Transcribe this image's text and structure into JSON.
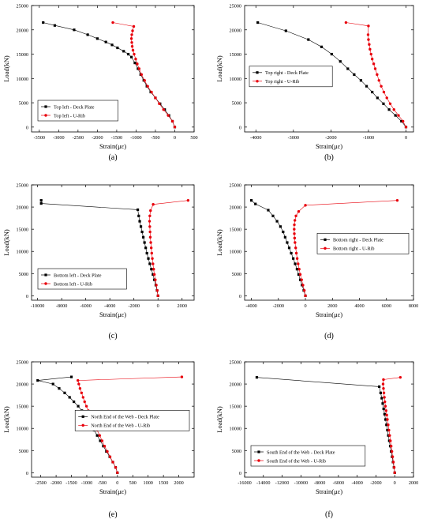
{
  "colors": {
    "deck": "#000000",
    "urib": "#e8000b",
    "axis": "#000000",
    "frame": "#ffffff"
  },
  "charts": [
    {
      "caption": "(a)",
      "chart_data": {
        "type": "line",
        "xlabel": "Strain(με)",
        "ylabel": "Load(kN)",
        "xlim": [
          -3700,
          500
        ],
        "ylim": [
          -1000,
          25000
        ],
        "xticks": [
          -3500,
          -3000,
          -2500,
          -2000,
          -1500,
          -1000,
          -500,
          0,
          500
        ],
        "yticks": [
          0,
          5000,
          10000,
          15000,
          20000,
          25000
        ],
        "legend_position": "lower-left",
        "series": [
          {
            "name": "Top left - Deck Plate",
            "color": "#000000",
            "marker": "square",
            "x": [
              0,
              -60,
              -150,
              -260,
              -380,
              -500,
              -620,
              -720,
              -800,
              -880,
              -950,
              -1030,
              -1120,
              -1200,
              -1320,
              -1480,
              -1620,
              -1780,
              -2000,
              -2250,
              -2600,
              -3100,
              -3400
            ],
            "y": [
              0,
              1200,
              2400,
              3600,
              4800,
              6000,
              7200,
              8400,
              9600,
              10800,
              12000,
              13200,
              14400,
              15000,
              15600,
              16300,
              16900,
              17500,
              18200,
              19000,
              20000,
              20900,
              21500
            ]
          },
          {
            "name": "Top left - U-Rib",
            "color": "#e8000b",
            "marker": "circle",
            "x": [
              0,
              -60,
              -170,
              -290,
              -400,
              -500,
              -600,
              -700,
              -780,
              -860,
              -920,
              -970,
              -1010,
              -1050,
              -1080,
              -1100,
              -1110,
              -1120,
              -1110,
              -1090,
              -1060,
              -1600
            ],
            "y": [
              0,
              1200,
              2400,
              3600,
              4800,
              6000,
              7200,
              8400,
              9600,
              10800,
              12000,
              13000,
              14000,
              15000,
              15800,
              16600,
              17400,
              18200,
              19000,
              19800,
              20700,
              21500
            ]
          }
        ]
      }
    },
    {
      "caption": "(b)",
      "chart_data": {
        "type": "line",
        "xlabel": "Strain(με)",
        "ylabel": "Load(kN)",
        "xlim": [
          -4300,
          200
        ],
        "ylim": [
          -1000,
          25000
        ],
        "xticks": [
          -4000,
          -3000,
          -2000,
          -1000,
          0
        ],
        "yticks": [
          0,
          5000,
          10000,
          15000,
          20000,
          25000
        ],
        "legend_position": "center-left",
        "series": [
          {
            "name": "Top right - Deck Plate",
            "color": "#000000",
            "marker": "square",
            "x": [
              0,
              -120,
              -280,
              -450,
              -600,
              -760,
              -900,
              -1050,
              -1200,
              -1380,
              -1550,
              -1750,
              -1980,
              -2250,
              -2600,
              -3200,
              -3950
            ],
            "y": [
              0,
              1200,
              2400,
              3600,
              4800,
              6000,
              7200,
              8400,
              9600,
              10800,
              12000,
              13500,
              15000,
              16500,
              18000,
              19800,
              21500
            ]
          },
          {
            "name": "Top right - U-Rib",
            "color": "#e8000b",
            "marker": "circle",
            "x": [
              0,
              -80,
              -200,
              -320,
              -420,
              -510,
              -590,
              -660,
              -720,
              -770,
              -820,
              -860,
              -900,
              -930,
              -960,
              -980,
              -1000,
              -1010,
              -1000,
              -1600
            ],
            "y": [
              0,
              1200,
              2400,
              3600,
              4800,
              6000,
              7200,
              8400,
              9600,
              10800,
              12000,
              13000,
              14000,
              15000,
              16000,
              17000,
              18000,
              19000,
              20800,
              21500
            ]
          }
        ]
      }
    },
    {
      "caption": "(c)",
      "chart_data": {
        "type": "line",
        "xlabel": "Strain(με)",
        "ylabel": "Load(kN)",
        "xlim": [
          -10500,
          3000
        ],
        "ylim": [
          -1000,
          25000
        ],
        "xticks": [
          -10000,
          -8000,
          -6000,
          -4000,
          -2000,
          0,
          2000
        ],
        "yticks": [
          0,
          5000,
          10000,
          15000,
          20000,
          25000
        ],
        "legend_position": "lower-left",
        "series": [
          {
            "name": "Bottom left - Deck Plate",
            "color": "#000000",
            "marker": "square",
            "x": [
              0,
              -80,
              -180,
              -300,
              -420,
              -550,
              -680,
              -800,
              -920,
              -1020,
              -1120,
              -1220,
              -1320,
              -1420,
              -1520,
              -1600,
              -1680,
              -9700
            ],
            "y": [
              0,
              1200,
              2400,
              3600,
              4800,
              6000,
              7200,
              8400,
              9600,
              10800,
              12000,
              13200,
              14400,
              15600,
              16800,
              18000,
              19400,
              20800
            ],
            "extra_point": {
              "x": -9700,
              "y": 21500
            }
          },
          {
            "name": "Bottom left - U-Rib",
            "color": "#e8000b",
            "marker": "circle",
            "x": [
              0,
              -60,
              -140,
              -220,
              -300,
              -360,
              -420,
              -470,
              -520,
              -560,
              -600,
              -640,
              -660,
              -680,
              -700,
              -680,
              -620,
              -400,
              2500
            ],
            "y": [
              0,
              1200,
              2400,
              3600,
              4800,
              6000,
              7200,
              8400,
              9600,
              10800,
              12000,
              13200,
              14400,
              15600,
              16800,
              18000,
              19200,
              20600,
              21500
            ]
          }
        ]
      }
    },
    {
      "caption": "(d)",
      "chart_data": {
        "type": "line",
        "xlabel": "Strain(με)",
        "ylabel": "Load(kN)",
        "xlim": [
          -4500,
          8000
        ],
        "ylim": [
          -1000,
          25000
        ],
        "xticks": [
          -4000,
          -2000,
          0,
          2000,
          4000,
          6000,
          8000
        ],
        "yticks": [
          0,
          5000,
          10000,
          15000,
          20000,
          25000
        ],
        "legend_position": "center-right",
        "series": [
          {
            "name": "Bottom right - Deck Plate",
            "color": "#000000",
            "marker": "square",
            "x": [
              0,
              -120,
              -250,
              -380,
              -500,
              -620,
              -760,
              -900,
              -1050,
              -1200,
              -1350,
              -1500,
              -1650,
              -1850,
              -2100,
              -2400,
              -2750,
              -3700,
              -4000
            ],
            "y": [
              0,
              1200,
              2400,
              3600,
              4800,
              6000,
              7200,
              8400,
              9600,
              10800,
              12000,
              13200,
              14400,
              15600,
              16800,
              18000,
              19300,
              20700,
              21500
            ]
          },
          {
            "name": "Bottom right - U-Rib",
            "color": "#e8000b",
            "marker": "circle",
            "x": [
              0,
              -80,
              -180,
              -280,
              -380,
              -460,
              -540,
              -610,
              -670,
              -720,
              -770,
              -800,
              -820,
              -830,
              -820,
              -780,
              -700,
              -500,
              0,
              6800
            ],
            "y": [
              0,
              1200,
              2400,
              3600,
              4800,
              6000,
              7200,
              8400,
              9600,
              10800,
              12000,
              13000,
              14000,
              15000,
              16000,
              17000,
              18000,
              19000,
              20400,
              21500
            ]
          }
        ]
      }
    },
    {
      "caption": "(e)",
      "chart_data": {
        "type": "line",
        "xlabel": "Strain(με)",
        "ylabel": "Load(kN)",
        "xlim": [
          -2800,
          2500
        ],
        "ylim": [
          -1000,
          25000
        ],
        "xticks": [
          -2500,
          -2000,
          -1500,
          -1000,
          -500,
          0,
          500,
          1000,
          1500,
          2000
        ],
        "yticks": [
          0,
          5000,
          10000,
          15000,
          20000,
          25000
        ],
        "legend_position": "center-right",
        "series": [
          {
            "name": "North End of the Web - Deck Plate",
            "color": "#000000",
            "marker": "square",
            "x": [
              0,
              -60,
              -150,
              -250,
              -360,
              -460,
              -560,
              -660,
              -760,
              -860,
              -960,
              -1060,
              -1160,
              -1280,
              -1420,
              -1560,
              -1720,
              -1900,
              -2100,
              -2600,
              -1500
            ],
            "y": [
              0,
              1200,
              2400,
              3600,
              4800,
              6000,
              7200,
              8400,
              9600,
              10800,
              12000,
              13000,
              14000,
              15000,
              16000,
              17000,
              18000,
              19000,
              20000,
              20800,
              21600
            ]
          },
          {
            "name": "North End of the Web - U-Rib",
            "color": "#e8000b",
            "marker": "circle",
            "x": [
              0,
              -60,
              -150,
              -240,
              -330,
              -420,
              -500,
              -580,
              -660,
              -740,
              -810,
              -880,
              -950,
              -1010,
              -1070,
              -1120,
              -1170,
              -1220,
              -1260,
              -1290,
              2100
            ],
            "y": [
              0,
              1200,
              2400,
              3600,
              4800,
              6000,
              7200,
              8400,
              9600,
              10800,
              12000,
              13000,
              14000,
              15000,
              16000,
              17000,
              18000,
              19000,
              20000,
              20800,
              21600
            ]
          }
        ]
      }
    },
    {
      "caption": "(f)",
      "chart_data": {
        "type": "line",
        "xlabel": "Strain(με)",
        "ylabel": "Load(kN)",
        "xlim": [
          -16000,
          2000
        ],
        "ylim": [
          -1000,
          25000
        ],
        "xticks": [
          -16000,
          -14000,
          -12000,
          -10000,
          -8000,
          -6000,
          -4000,
          -2000,
          0,
          2000
        ],
        "yticks": [
          0,
          5000,
          10000,
          15000,
          20000,
          25000
        ],
        "legend_position": "lower-left",
        "series": [
          {
            "name": "South End of the Web - Deck Plate",
            "color": "#000000",
            "marker": "square",
            "x": [
              0,
              -80,
              -180,
              -280,
              -380,
              -480,
              -580,
              -680,
              -780,
              -880,
              -980,
              -1080,
              -1180,
              -1280,
              -1380,
              -1500,
              -1650,
              -14700
            ],
            "y": [
              0,
              1200,
              2400,
              3600,
              4800,
              6000,
              7200,
              8400,
              9600,
              10800,
              12000,
              13200,
              14400,
              15600,
              16800,
              18000,
              19400,
              21500
            ]
          },
          {
            "name": "South End of the Web - U-Rib",
            "color": "#e8000b",
            "marker": "circle",
            "x": [
              0,
              -60,
              -140,
              -220,
              -300,
              -380,
              -460,
              -540,
              -620,
              -700,
              -780,
              -850,
              -920,
              -990,
              -1050,
              -1100,
              -1150,
              -1200,
              -1240,
              -1200,
              600
            ],
            "y": [
              0,
              1200,
              2400,
              3600,
              4800,
              6000,
              7200,
              8400,
              9600,
              10800,
              12000,
              13000,
              14000,
              15000,
              16000,
              17000,
              18000,
              19000,
              20000,
              21000,
              21500
            ]
          }
        ]
      }
    }
  ]
}
